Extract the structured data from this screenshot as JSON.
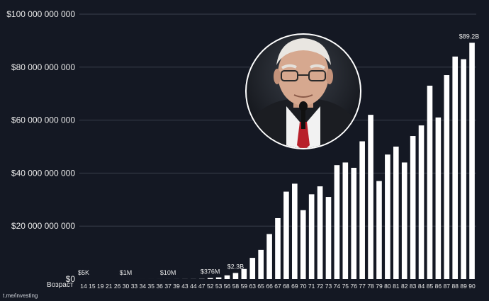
{
  "chart_data": {
    "type": "bar",
    "title": "",
    "xlabel": "Возраст",
    "ylabel": "",
    "ylim": [
      0,
      100000000000
    ],
    "grid": true,
    "legend": "none",
    "colors": {
      "background": "#141823",
      "bar": "#ffffff",
      "grid": "#3a3f4c",
      "text": "#e8e8e8"
    },
    "y_ticks": [
      {
        "value": 0,
        "label": "$0"
      },
      {
        "value": 20000000000,
        "label": "$20 000 000 000"
      },
      {
        "value": 40000000000,
        "label": "$40 000 000 000"
      },
      {
        "value": 60000000000,
        "label": "$60 000 000 000"
      },
      {
        "value": 80000000000,
        "label": "$80 000 000 000"
      },
      {
        "value": 100000000000,
        "label": "$100 000 000 000"
      }
    ],
    "categories": [
      "14",
      "15",
      "19",
      "21",
      "26",
      "30",
      "33",
      "34",
      "35",
      "36",
      "37",
      "39",
      "43",
      "44",
      "47",
      "52",
      "53",
      "56",
      "58",
      "59",
      "63",
      "65",
      "66",
      "67",
      "68",
      "69",
      "70",
      "71",
      "72",
      "73",
      "74",
      "75",
      "76",
      "77",
      "78",
      "79",
      "80",
      "81",
      "82",
      "83",
      "84",
      "85",
      "86",
      "87",
      "88",
      "89",
      "90"
    ],
    "values": [
      5000,
      6000,
      10000,
      20000,
      140000,
      1000000,
      2000000,
      2500000,
      4000000,
      7000000,
      10000000,
      15000000,
      25000000,
      30000000,
      67000000,
      376000000,
      620000000,
      1400000000,
      2300000000,
      3800000000,
      8000000000,
      11000000000,
      17000000000,
      23000000000,
      33000000000,
      36000000000,
      26000000000,
      32000000000,
      35000000000,
      31000000000,
      43000000000,
      44000000000,
      42000000000,
      52000000000,
      62000000000,
      37000000000,
      47000000000,
      50000000000,
      44000000000,
      54000000000,
      58000000000,
      73000000000,
      61000000000,
      77000000000,
      84000000000,
      83000000000,
      89200000000
    ],
    "annotations": [
      {
        "category": "14",
        "label": "$5K"
      },
      {
        "category": "30",
        "label": "$1M"
      },
      {
        "category": "37",
        "label": "$10M"
      },
      {
        "category": "52",
        "label": "$376M"
      },
      {
        "category": "58",
        "label": "$2.3B"
      },
      {
        "category": "90",
        "label": "$89.2B"
      }
    ]
  },
  "watermark": "t.me/investing"
}
